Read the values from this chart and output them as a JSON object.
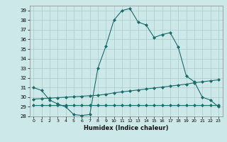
{
  "title": "",
  "xlabel": "Humidex (Indice chaleur)",
  "xlim": [
    -0.5,
    23.5
  ],
  "ylim": [
    28,
    39.5
  ],
  "yticks": [
    28,
    29,
    30,
    31,
    32,
    33,
    34,
    35,
    36,
    37,
    38,
    39
  ],
  "xticks": [
    0,
    1,
    2,
    3,
    4,
    5,
    6,
    7,
    8,
    9,
    10,
    11,
    12,
    13,
    14,
    15,
    16,
    17,
    18,
    19,
    20,
    21,
    22,
    23
  ],
  "bg_color": "#cce8e8",
  "grid_color": "#aacccc",
  "line_color": "#1a6b6b",
  "line1_x": [
    0,
    1,
    2,
    3,
    4,
    5,
    6,
    7,
    8,
    9,
    10,
    11,
    12,
    13,
    14,
    15,
    16,
    17,
    18,
    19,
    20,
    21,
    22,
    23
  ],
  "line1_y": [
    31.0,
    30.7,
    29.7,
    29.3,
    29.0,
    28.2,
    28.1,
    28.2,
    33.0,
    35.3,
    38.0,
    39.0,
    39.2,
    37.8,
    37.5,
    36.2,
    36.5,
    36.7,
    35.2,
    32.2,
    31.6,
    30.0,
    29.7,
    29.0
  ],
  "line2_x": [
    0,
    1,
    2,
    3,
    4,
    5,
    6,
    7,
    8,
    9,
    10,
    11,
    12,
    13,
    14,
    15,
    16,
    17,
    18,
    19,
    20,
    21,
    22,
    23
  ],
  "line2_y": [
    29.2,
    29.2,
    29.2,
    29.2,
    29.2,
    29.2,
    29.2,
    29.2,
    29.2,
    29.2,
    29.2,
    29.2,
    29.2,
    29.2,
    29.2,
    29.2,
    29.2,
    29.2,
    29.2,
    29.2,
    29.2,
    29.2,
    29.2,
    29.2
  ],
  "line3_x": [
    0,
    1,
    2,
    3,
    4,
    5,
    6,
    7,
    8,
    9,
    10,
    11,
    12,
    13,
    14,
    15,
    16,
    17,
    18,
    19,
    20,
    21,
    22,
    23
  ],
  "line3_y": [
    29.8,
    29.85,
    29.9,
    29.95,
    30.0,
    30.05,
    30.1,
    30.15,
    30.2,
    30.3,
    30.45,
    30.55,
    30.65,
    30.75,
    30.85,
    30.95,
    31.05,
    31.15,
    31.25,
    31.35,
    31.5,
    31.6,
    31.7,
    31.8
  ]
}
